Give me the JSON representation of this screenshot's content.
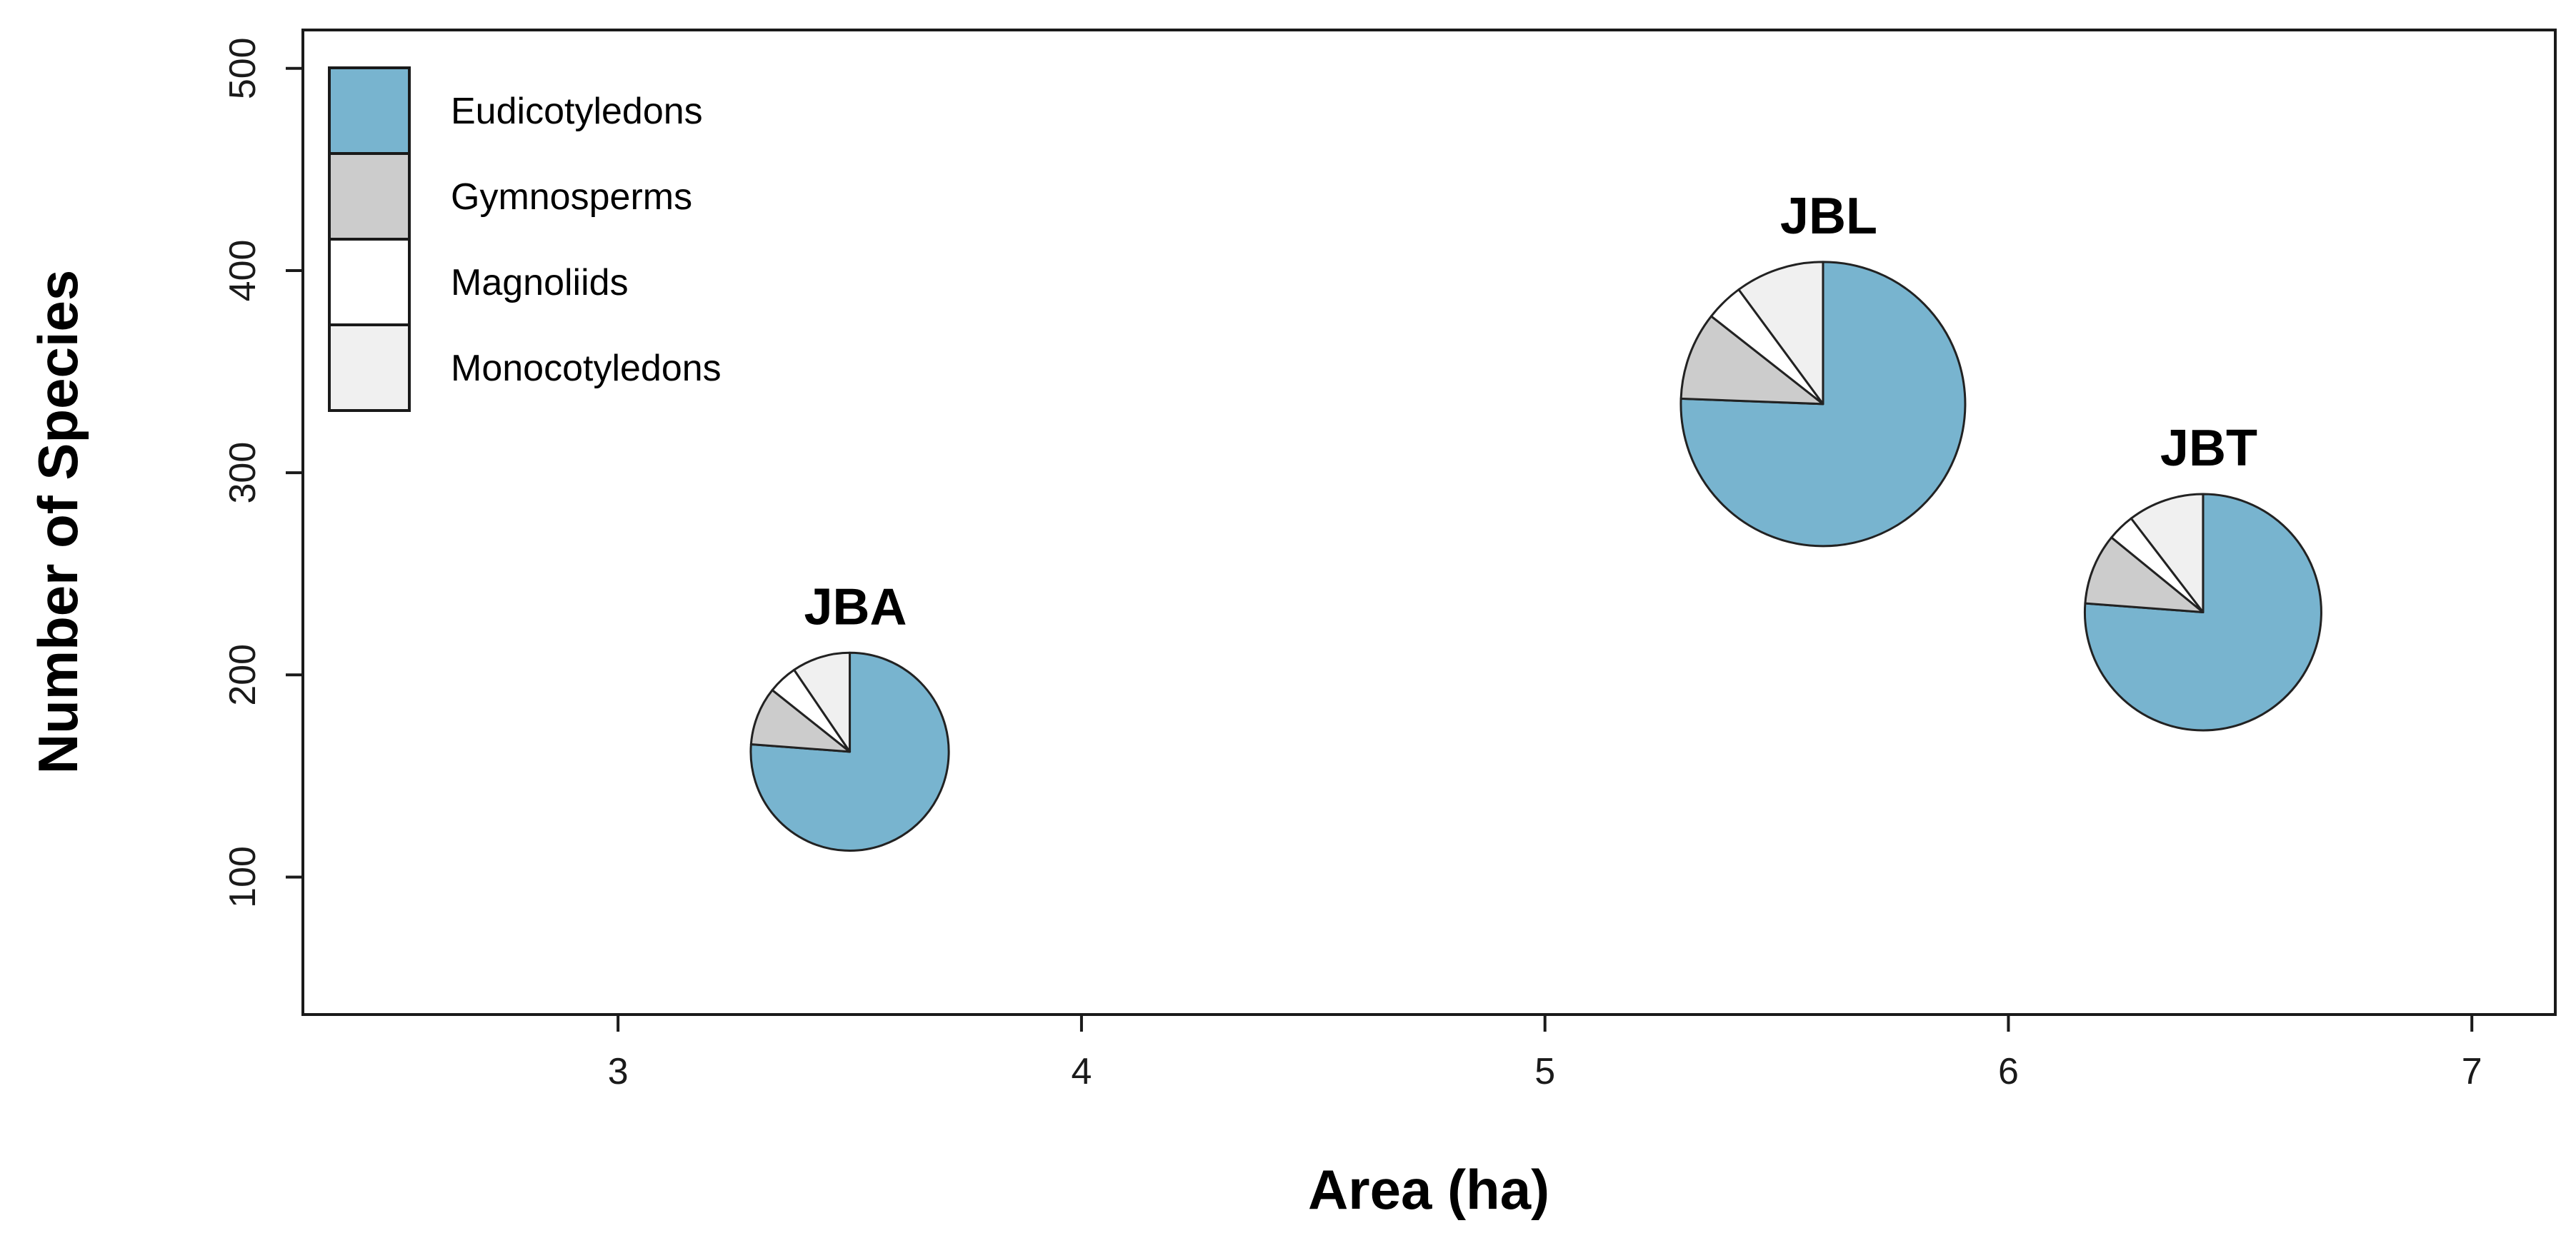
{
  "chart_data": {
    "type": "scatter",
    "title": "",
    "xlabel": "Area (ha)",
    "ylabel": "Number of Species",
    "xlim": [
      2.32,
      7.18
    ],
    "ylim": [
      32,
      519
    ],
    "x_ticks": [
      3,
      4,
      5,
      6,
      7
    ],
    "y_ticks": [
      100,
      200,
      300,
      400,
      500
    ],
    "grid": false,
    "legend_position": "top-left",
    "categories": [
      "Eudicotyledons",
      "Gymnosperms",
      "Magnoliids",
      "Monocotyledons"
    ],
    "colors": {
      "Eudicotyledons": "#78b4cf",
      "Gymnosperms": "#cccccc",
      "Magnoliids": "#ffffff",
      "Monocotyledons": "#f0f0f0"
    },
    "points": [
      {
        "label": "JBA",
        "x": 3.5,
        "y": 162,
        "total_species": 162,
        "slices": {
          "Eudicotyledons": 0.762,
          "Gymnosperms": 0.095,
          "Magnoliids": 0.048,
          "Monocotyledons": 0.095
        }
      },
      {
        "label": "JBL",
        "x": 5.6,
        "y": 334,
        "total_species": 334,
        "slices": {
          "Eudicotyledons": 0.756,
          "Gymnosperms": 0.1,
          "Magnoliids": 0.043,
          "Monocotyledons": 0.101
        }
      },
      {
        "label": "JBT",
        "x": 6.42,
        "y": 231,
        "total_species": 231,
        "slices": {
          "Eudicotyledons": 0.762,
          "Gymnosperms": 0.097,
          "Magnoliids": 0.037,
          "Monocotyledons": 0.104
        }
      }
    ]
  }
}
